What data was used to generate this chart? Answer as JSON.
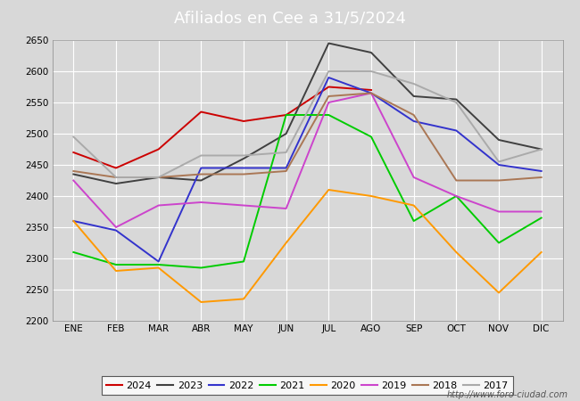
{
  "title": "Afiliados en Cee a 31/5/2024",
  "months": [
    "ENE",
    "FEB",
    "MAR",
    "ABR",
    "MAY",
    "JUN",
    "JUL",
    "AGO",
    "SEP",
    "OCT",
    "NOV",
    "DIC"
  ],
  "ylim": [
    2200,
    2650
  ],
  "yticks": [
    2200,
    2250,
    2300,
    2350,
    2400,
    2450,
    2500,
    2550,
    2600,
    2650
  ],
  "series": {
    "2024": {
      "color": "#cc0000",
      "data": [
        2470,
        2445,
        2475,
        2535,
        2520,
        2530,
        2575,
        2570,
        null,
        null,
        null,
        null
      ]
    },
    "2023": {
      "color": "#404040",
      "data": [
        2435,
        2420,
        2430,
        2425,
        2460,
        2500,
        2645,
        2630,
        2560,
        2555,
        2490,
        2475
      ]
    },
    "2022": {
      "color": "#3333cc",
      "data": [
        2360,
        2345,
        2295,
        2445,
        2445,
        2445,
        2590,
        2565,
        2520,
        2505,
        2450,
        2440
      ]
    },
    "2021": {
      "color": "#00cc00",
      "data": [
        2310,
        2290,
        2290,
        2285,
        2295,
        2530,
        2530,
        2495,
        2360,
        2400,
        2325,
        2365
      ]
    },
    "2020": {
      "color": "#ff9900",
      "data": [
        2360,
        2280,
        2285,
        2230,
        2235,
        2325,
        2410,
        2400,
        2385,
        2310,
        2245,
        2310
      ]
    },
    "2019": {
      "color": "#cc44cc",
      "data": [
        2425,
        2350,
        2385,
        2390,
        2385,
        2380,
        2550,
        2565,
        2430,
        2400,
        2375,
        2375
      ]
    },
    "2018": {
      "color": "#aa7755",
      "data": [
        2440,
        2430,
        2430,
        2435,
        2435,
        2440,
        2560,
        2565,
        2530,
        2425,
        2425,
        2430
      ]
    },
    "2017": {
      "color": "#aaaaaa",
      "data": [
        2495,
        2430,
        2430,
        2465,
        2465,
        2470,
        2600,
        2600,
        2580,
        2550,
        2455,
        2475
      ]
    }
  },
  "legend_order": [
    "2024",
    "2023",
    "2022",
    "2021",
    "2020",
    "2019",
    "2018",
    "2017"
  ],
  "fig_bg_color": "#d8d8d8",
  "plot_bg_color": "#d8d8d8",
  "title_bg_color": "#4472c4",
  "title_color": "white",
  "footer_text": "http://www.foro-ciudad.com",
  "title_fontsize": 13,
  "legend_fontsize": 8,
  "tick_fontsize": 7.5,
  "footer_fontsize": 7
}
